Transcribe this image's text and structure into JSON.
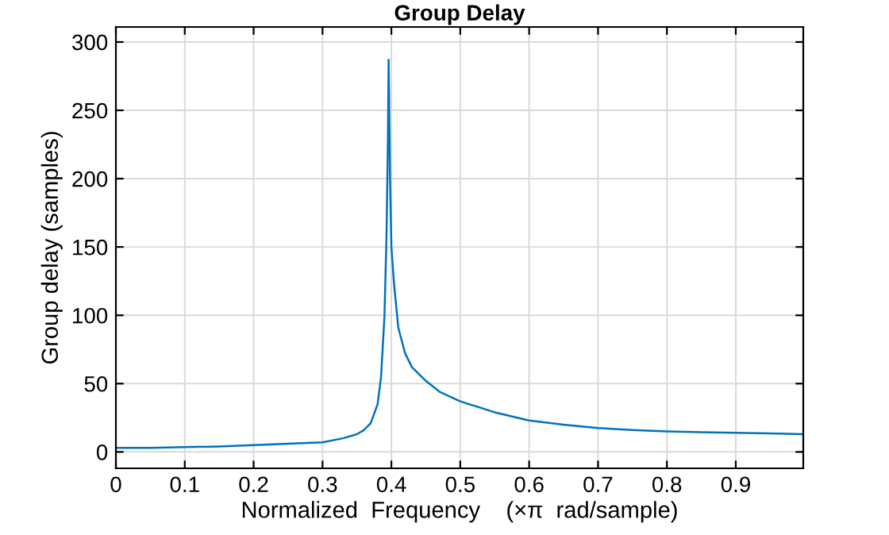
{
  "chart_data": {
    "type": "line",
    "title": "Group Delay",
    "xlabel": "Normalized  Frequency    (×π  rad/sample)",
    "ylabel": "Group delay (samples)",
    "x": [
      0,
      0.05,
      0.1,
      0.15,
      0.2,
      0.25,
      0.3,
      0.33,
      0.35,
      0.36,
      0.37,
      0.38,
      0.385,
      0.39,
      0.393,
      0.395,
      0.396,
      0.398,
      0.4,
      0.404,
      0.41,
      0.42,
      0.43,
      0.45,
      0.47,
      0.5,
      0.55,
      0.6,
      0.65,
      0.7,
      0.75,
      0.8,
      0.85,
      0.9,
      0.95,
      0.998
    ],
    "series": [
      {
        "color": "#0072bd",
        "values": [
          3,
          3,
          3.5,
          4,
          5,
          6,
          7,
          10,
          13,
          16,
          21,
          35,
          55,
          100,
          160,
          230,
          287,
          200,
          150,
          122,
          91,
          72,
          62,
          52,
          44,
          37,
          29,
          23,
          20,
          17.5,
          16,
          15,
          14.5,
          14,
          13.5,
          13
        ]
      }
    ],
    "xlim": [
      0,
      0.998
    ],
    "ylim": [
      -12,
      311
    ],
    "xticks": [
      0,
      0.1,
      0.2,
      0.3,
      0.4,
      0.5,
      0.6,
      0.7,
      0.8,
      0.9
    ],
    "yticks": [
      0,
      50,
      100,
      150,
      200,
      250,
      300
    ],
    "grid": true
  }
}
